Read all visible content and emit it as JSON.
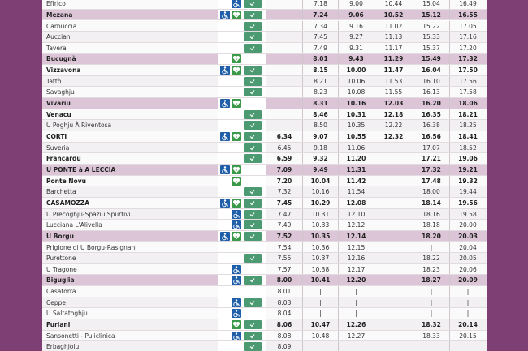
{
  "table": {
    "rows": [
      {
        "name": "Effrico",
        "bold": false,
        "shaded": false,
        "wheelchair": true,
        "defib": false,
        "check": true,
        "times": [
          null,
          "7.18",
          "9.00",
          "10.44",
          "15.04",
          "16.49"
        ]
      },
      {
        "name": "Mezana",
        "bold": true,
        "shaded": true,
        "wheelchair": true,
        "defib": true,
        "check": true,
        "times": [
          null,
          "7.24",
          "9.06",
          "10.52",
          "15.12",
          "16.55"
        ]
      },
      {
        "name": "Carbuccia",
        "bold": false,
        "shaded": false,
        "wheelchair": false,
        "defib": false,
        "check": true,
        "times": [
          null,
          "7.34",
          "9.16",
          "11.02",
          "15.22",
          "17.05"
        ]
      },
      {
        "name": "Aucciani",
        "bold": false,
        "shaded": false,
        "wheelchair": false,
        "defib": false,
        "check": true,
        "times": [
          null,
          "7.45",
          "9.27",
          "11.13",
          "15.33",
          "17.16"
        ]
      },
      {
        "name": "Tavera",
        "bold": false,
        "shaded": false,
        "wheelchair": false,
        "defib": false,
        "check": true,
        "times": [
          null,
          "7.49",
          "9.31",
          "11.17",
          "15.37",
          "17.20"
        ]
      },
      {
        "name": "Bucugnà",
        "bold": true,
        "shaded": true,
        "wheelchair": false,
        "defib": true,
        "check": false,
        "times": [
          null,
          "8.01",
          "9.43",
          "11.29",
          "15.49",
          "17.32"
        ]
      },
      {
        "name": "Vizzavona",
        "bold": true,
        "shaded": false,
        "wheelchair": true,
        "defib": true,
        "check": true,
        "times": [
          null,
          "8.15",
          "10.00",
          "11.47",
          "16.04",
          "17.50"
        ]
      },
      {
        "name": "Tattò",
        "bold": false,
        "shaded": false,
        "wheelchair": false,
        "defib": false,
        "check": true,
        "times": [
          null,
          "8.21",
          "10.06",
          "11.53",
          "16.10",
          "17.56"
        ]
      },
      {
        "name": "Savaghju",
        "bold": false,
        "shaded": false,
        "wheelchair": false,
        "defib": false,
        "check": true,
        "times": [
          null,
          "8.23",
          "10.08",
          "11.55",
          "16.13",
          "17.58"
        ]
      },
      {
        "name": "Vivariu",
        "bold": true,
        "shaded": true,
        "wheelchair": true,
        "defib": true,
        "check": false,
        "times": [
          null,
          "8.31",
          "10.16",
          "12.03",
          "16.20",
          "18.06"
        ]
      },
      {
        "name": "Venacu",
        "bold": true,
        "shaded": false,
        "wheelchair": false,
        "defib": false,
        "check": true,
        "times": [
          null,
          "8.46",
          "10.31",
          "12.18",
          "16.35",
          "18.21"
        ]
      },
      {
        "name": "U Poghju À Riventosa",
        "bold": false,
        "shaded": false,
        "wheelchair": false,
        "defib": false,
        "check": true,
        "times": [
          null,
          "8.50",
          "10.35",
          "12.22",
          "16.38",
          "18.25"
        ]
      },
      {
        "name": "CORTI",
        "bold": true,
        "shaded": false,
        "wheelchair": true,
        "defib": true,
        "check": true,
        "times": [
          "6.34",
          "9.07",
          "10.55",
          "12.32",
          "16.56",
          "18.41"
        ]
      },
      {
        "name": "Suveria",
        "bold": false,
        "shaded": false,
        "wheelchair": false,
        "defib": false,
        "check": true,
        "times": [
          "6.45",
          "9.18",
          "11.06",
          null,
          "17.07",
          "18.52"
        ]
      },
      {
        "name": "Francardu",
        "bold": true,
        "shaded": false,
        "wheelchair": false,
        "defib": false,
        "check": true,
        "times": [
          "6.59",
          "9.32",
          "11.20",
          null,
          "17.21",
          "19.06"
        ]
      },
      {
        "name": "U PONTE à A LECCIA",
        "bold": true,
        "shaded": true,
        "wheelchair": true,
        "defib": true,
        "check": false,
        "times": [
          "7.09",
          "9.49",
          "11.31",
          null,
          "17.32",
          "19.21"
        ]
      },
      {
        "name": "Ponte Novu",
        "bold": true,
        "shaded": false,
        "wheelchair": false,
        "defib": true,
        "check": false,
        "times": [
          "7.20",
          "10.04",
          "11.42",
          null,
          "17.48",
          "19.32"
        ]
      },
      {
        "name": "Barchetta",
        "bold": false,
        "shaded": false,
        "wheelchair": false,
        "defib": false,
        "check": true,
        "times": [
          "7.32",
          "10.16",
          "11.54",
          null,
          "18.00",
          "19.44"
        ]
      },
      {
        "name": "CASAMOZZA",
        "bold": true,
        "shaded": false,
        "wheelchair": true,
        "defib": true,
        "check": true,
        "times": [
          "7.45",
          "10.29",
          "12.08",
          null,
          "18.14",
          "19.56"
        ]
      },
      {
        "name": "U Precoghju-Spaziu Spurtivu",
        "bold": false,
        "shaded": false,
        "wheelchair": true,
        "defib": false,
        "check": true,
        "times": [
          "7.47",
          "10.31",
          "12.10",
          null,
          "18.16",
          "19.58"
        ]
      },
      {
        "name": "Lucciana L'Alivella",
        "bold": false,
        "shaded": false,
        "wheelchair": true,
        "defib": false,
        "check": true,
        "times": [
          "7.49",
          "10.33",
          "12.12",
          null,
          "18.18",
          "20.00"
        ]
      },
      {
        "name": "U Borgu",
        "bold": true,
        "shaded": true,
        "wheelchair": true,
        "defib": true,
        "check": true,
        "times": [
          "7.52",
          "10.35",
          "12.14",
          null,
          "18.20",
          "20.03"
        ]
      },
      {
        "name": "Prigione di U Borgu-Rasignani",
        "bold": false,
        "shaded": false,
        "wheelchair": false,
        "defib": false,
        "check": false,
        "times": [
          "7.54",
          "10.36",
          "12.15",
          null,
          "|",
          "20.04"
        ]
      },
      {
        "name": "Purettone",
        "bold": false,
        "shaded": false,
        "wheelchair": false,
        "defib": false,
        "check": true,
        "times": [
          "7.55",
          "10.37",
          "12.16",
          null,
          "18.22",
          "20.05"
        ]
      },
      {
        "name": "U Tragone",
        "bold": false,
        "shaded": false,
        "wheelchair": true,
        "defib": false,
        "check": false,
        "times": [
          "7.57",
          "10.38",
          "12.17",
          null,
          "18.23",
          "20.06"
        ]
      },
      {
        "name": "Biguglia",
        "bold": true,
        "shaded": true,
        "wheelchair": true,
        "defib": false,
        "check": true,
        "times": [
          "8.00",
          "10.41",
          "12.20",
          null,
          "18.27",
          "20.09"
        ]
      },
      {
        "name": "Casatorra",
        "bold": false,
        "shaded": false,
        "wheelchair": false,
        "defib": false,
        "check": false,
        "times": [
          "8.01",
          "|",
          "|",
          null,
          "|",
          "|"
        ]
      },
      {
        "name": "Ceppe",
        "bold": false,
        "shaded": false,
        "wheelchair": true,
        "defib": false,
        "check": true,
        "times": [
          "8.03",
          "|",
          "|",
          null,
          "|",
          "|"
        ]
      },
      {
        "name": "U Saltatoghju",
        "bold": false,
        "shaded": false,
        "wheelchair": true,
        "defib": false,
        "check": false,
        "times": [
          "8.04",
          "|",
          "|",
          null,
          "|",
          "|"
        ]
      },
      {
        "name": "Furiani",
        "bold": true,
        "shaded": false,
        "wheelchair": false,
        "defib": true,
        "check": true,
        "times": [
          "8.06",
          "10.47",
          "12.26",
          null,
          "18.32",
          "20.14"
        ]
      },
      {
        "name": "Sansonetti - Puliclinica",
        "bold": false,
        "shaded": false,
        "wheelchair": true,
        "defib": false,
        "check": true,
        "times": [
          "8.08",
          "10.48",
          "12.27",
          null,
          "18.33",
          "20.15"
        ]
      },
      {
        "name": "Erbaghjolu",
        "bold": false,
        "shaded": false,
        "wheelchair": false,
        "defib": false,
        "check": true,
        "times": [
          "8.09",
          null,
          null,
          null,
          null,
          null
        ]
      }
    ]
  }
}
